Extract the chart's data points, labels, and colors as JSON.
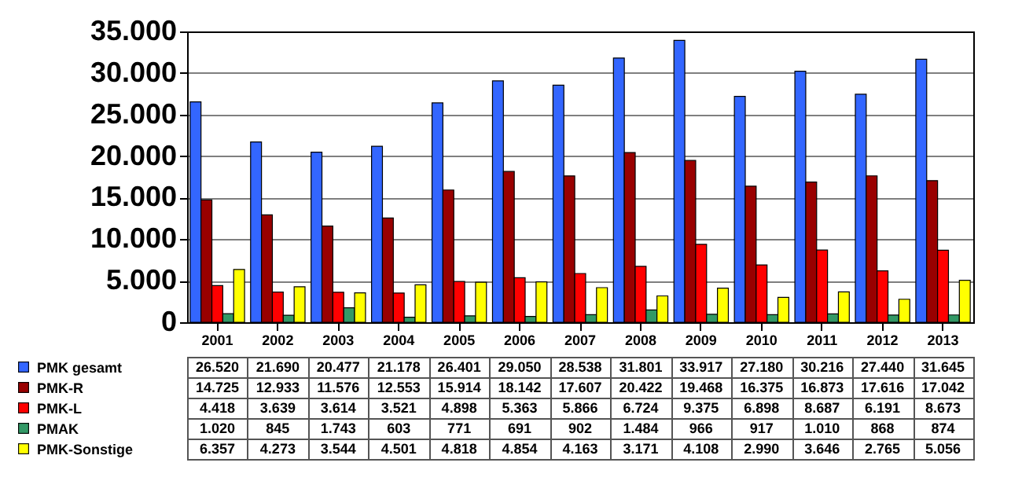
{
  "chart_data": {
    "type": "bar",
    "categories": [
      "2001",
      "2002",
      "2003",
      "2004",
      "2005",
      "2006",
      "2007",
      "2008",
      "2009",
      "2010",
      "2011",
      "2012",
      "2013"
    ],
    "series": [
      {
        "name": "PMK gesamt",
        "color": "#3366ff",
        "values": [
          26520,
          21690,
          20477,
          21178,
          26401,
          29050,
          28538,
          31801,
          33917,
          27180,
          30216,
          27440,
          31645
        ],
        "value_labels": [
          "26.520",
          "21.690",
          "20.477",
          "21.178",
          "26.401",
          "29.050",
          "28.538",
          "31.801",
          "33.917",
          "27.180",
          "30.216",
          "27.440",
          "31.645"
        ]
      },
      {
        "name": "PMK-R",
        "color": "#990000",
        "values": [
          14725,
          12933,
          11576,
          12553,
          15914,
          18142,
          17607,
          20422,
          19468,
          16375,
          16873,
          17616,
          17042
        ],
        "value_labels": [
          "14.725",
          "12.933",
          "11.576",
          "12.553",
          "15.914",
          "18.142",
          "17.607",
          "20.422",
          "19.468",
          "16.375",
          "16.873",
          "17.616",
          "17.042"
        ]
      },
      {
        "name": "PMK-L",
        "color": "#ff0000",
        "values": [
          4418,
          3639,
          3614,
          3521,
          4898,
          5363,
          5866,
          6724,
          9375,
          6898,
          8687,
          6191,
          8673
        ],
        "value_labels": [
          "4.418",
          "3.639",
          "3.614",
          "3.521",
          "4.898",
          "5.363",
          "5.866",
          "6.724",
          "9.375",
          "6.898",
          "8.687",
          "6.191",
          "8.673"
        ]
      },
      {
        "name": "PMAK",
        "color": "#339966",
        "values": [
          1020,
          845,
          1743,
          603,
          771,
          691,
          902,
          1484,
          966,
          917,
          1010,
          868,
          874
        ],
        "value_labels": [
          "1.020",
          "845",
          "1.743",
          "603",
          "771",
          "691",
          "902",
          "1.484",
          "966",
          "917",
          "1.010",
          "868",
          "874"
        ]
      },
      {
        "name": "PMK-Sonstige",
        "color": "#ffff00",
        "values": [
          6357,
          4273,
          3544,
          4501,
          4818,
          4854,
          4163,
          3171,
          4108,
          2990,
          3646,
          2765,
          5056
        ],
        "value_labels": [
          "6.357",
          "4.273",
          "3.544",
          "4.501",
          "4.818",
          "4.854",
          "4.163",
          "3.171",
          "4.108",
          "2.990",
          "3.646",
          "2.765",
          "5.056"
        ]
      }
    ],
    "ylim": [
      0,
      35000
    ],
    "yticks": [
      0,
      {
        "value": 5000,
        "label": "5.000"
      },
      {
        "value": 10000,
        "label": "10.000"
      },
      {
        "value": 15000,
        "label": "15.000"
      },
      {
        "value": 20000,
        "label": "20.000"
      },
      {
        "value": 25000,
        "label": "25.000"
      },
      {
        "value": 30000,
        "label": "30.000"
      },
      {
        "value": 35000,
        "label": "35.000"
      }
    ],
    "grid": "y",
    "legend": "bottom left"
  }
}
